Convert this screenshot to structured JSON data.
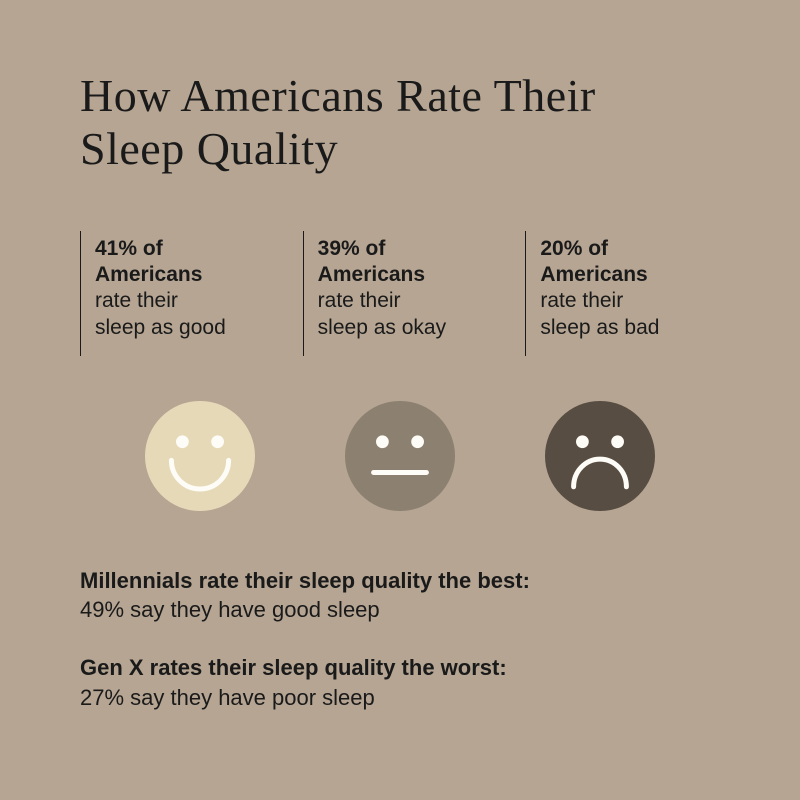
{
  "title": "How Americans Rate Their\nSleep Quality",
  "background_color": "#b5a592",
  "stats": [
    {
      "percent_line": "41% of",
      "subject": "Americans",
      "desc1": "rate their",
      "desc2": "sleep as good",
      "face_type": "happy",
      "face_fill": "#e6d9b8",
      "face_stroke": "#fefcf6"
    },
    {
      "percent_line": "39% of",
      "subject": "Americans",
      "desc1": "rate their",
      "desc2": "sleep as okay",
      "face_type": "neutral",
      "face_fill": "#8c8070",
      "face_stroke": "#fefcf6"
    },
    {
      "percent_line": "20% of",
      "subject": "Americans",
      "desc1": "rate their",
      "desc2": "sleep as bad",
      "face_type": "sad",
      "face_fill": "#574d42",
      "face_stroke": "#fefcf6"
    }
  ],
  "callouts": [
    {
      "bold": "Millennials rate their sleep quality the best:",
      "regular": "49% say they have good sleep"
    },
    {
      "bold": "Gen X rates their sleep quality the worst:",
      "regular": "27% say they have poor sleep"
    }
  ],
  "face_diameter": 110,
  "stroke_width": 5
}
